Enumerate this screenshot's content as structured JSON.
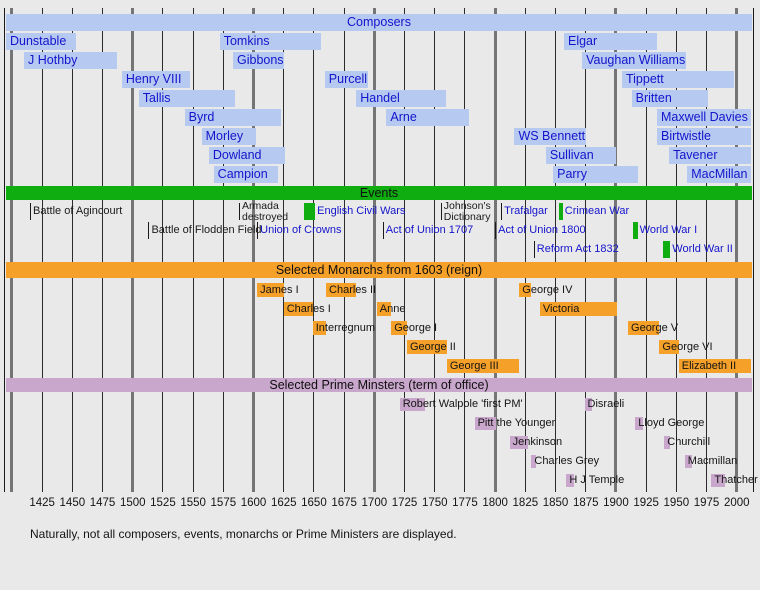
{
  "caption": "Naturally, not all composers, events, monarchs or Prime Ministers are displayed.",
  "colors": {
    "background": "#e9e9e9",
    "composer_bar": "#b5c9f1",
    "link_blue_text": "#1414cc",
    "event_green": "#10ad10",
    "monarch_orange": "#f5a028",
    "pm_purple": "#c9a6cb",
    "grid_minor": "#2b2b2b",
    "grid_major": "#757575"
  },
  "chart_data": {
    "type": "timeline",
    "x_domain": [
      1395,
      2012
    ],
    "grid": {
      "start": 1400,
      "end": 2000,
      "step": 25,
      "major_every": 100
    },
    "axis": {
      "tick_labels": [
        "1425",
        "1450",
        "1475",
        "1500",
        "1525",
        "1550",
        "1575",
        "1600",
        "1625",
        "1650",
        "1675",
        "1700",
        "1725",
        "1750",
        "1775",
        "1800",
        "1825",
        "1850",
        "1875",
        "1900",
        "1925",
        "1950",
        "1975",
        "2000"
      ]
    },
    "sections": [
      {
        "id": "composers",
        "title": "Composers",
        "items": [
          {
            "name": "Dunstable",
            "start": 1390,
            "end": 1453,
            "row": 0
          },
          {
            "name": "Tomkins",
            "start": 1572,
            "end": 1656,
            "row": 0
          },
          {
            "name": "Elgar",
            "start": 1857,
            "end": 1934,
            "row": 0
          },
          {
            "name": "J Hothby",
            "start": 1410,
            "end": 1487,
            "row": 1
          },
          {
            "name": "Gibbons",
            "start": 1583,
            "end": 1625,
            "row": 1
          },
          {
            "name": "Vaughan Williams",
            "start": 1872,
            "end": 1958,
            "row": 1
          },
          {
            "name": "Henry VIII",
            "start": 1491,
            "end": 1547,
            "row": 2
          },
          {
            "name": "Purcell",
            "start": 1659,
            "end": 1695,
            "row": 2
          },
          {
            "name": "Tippett",
            "start": 1905,
            "end": 1998,
            "row": 2
          },
          {
            "name": "Tallis",
            "start": 1505,
            "end": 1585,
            "row": 3
          },
          {
            "name": "Handel",
            "start": 1685,
            "end": 1759,
            "row": 3
          },
          {
            "name": "Britten",
            "start": 1913,
            "end": 1976,
            "row": 3
          },
          {
            "name": "Byrd",
            "start": 1543,
            "end": 1623,
            "row": 4
          },
          {
            "name": "Arne",
            "start": 1710,
            "end": 1778,
            "row": 4
          },
          {
            "name": "Maxwell Davies",
            "start": 1934,
            "end": null,
            "row": 4
          },
          {
            "name": "Morley",
            "start": 1557,
            "end": 1602,
            "row": 5
          },
          {
            "name": "WS Bennett",
            "start": 1816,
            "end": 1875,
            "row": 5
          },
          {
            "name": "Birtwistle",
            "start": 1934,
            "end": null,
            "row": 5
          },
          {
            "name": "Dowland",
            "start": 1563,
            "end": 1626,
            "row": 6
          },
          {
            "name": "Sullivan",
            "start": 1842,
            "end": 1900,
            "row": 6
          },
          {
            "name": "Tavener",
            "start": 1944,
            "end": null,
            "row": 6
          },
          {
            "name": "Campion",
            "start": 1567,
            "end": 1620,
            "row": 7
          },
          {
            "name": "Parry",
            "start": 1848,
            "end": 1918,
            "row": 7
          },
          {
            "name": "MacMillan",
            "start": 1959,
            "end": null,
            "row": 7
          }
        ]
      },
      {
        "id": "events",
        "title": "Events",
        "items": [
          {
            "name": "Battle of Agincourt",
            "year": 1415,
            "row": 0,
            "color": "black",
            "kind": "tick"
          },
          {
            "name": "Armada\ndestroyed",
            "year": 1588,
            "row": 0,
            "color": "black",
            "kind": "tick",
            "two_line": true
          },
          {
            "name": "English Civil Wars",
            "start": 1642,
            "end": 1651,
            "row": 0,
            "color": "blue",
            "kind": "block"
          },
          {
            "name": "Johnson's\nDictionary",
            "year": 1755,
            "row": 0,
            "color": "black",
            "kind": "tick",
            "two_line": true
          },
          {
            "name": "Trafalgar",
            "year": 1805,
            "row": 0,
            "color": "blue",
            "kind": "tick"
          },
          {
            "name": "Crimean War",
            "start": 1853,
            "end": 1856,
            "row": 0,
            "color": "blue",
            "kind": "block"
          },
          {
            "name": "Battle of Flodden Field",
            "year": 1513,
            "row": 1,
            "color": "black",
            "kind": "tick"
          },
          {
            "name": "Union of Crowns",
            "year": 1603,
            "row": 1,
            "color": "blue",
            "kind": "tick"
          },
          {
            "name": "Act of Union 1707",
            "year": 1707,
            "row": 1,
            "color": "blue",
            "kind": "tick"
          },
          {
            "name": "Act of Union 1800",
            "year": 1800,
            "row": 1,
            "color": "blue",
            "kind": "tick"
          },
          {
            "name": "World War I",
            "start": 1914,
            "end": 1918,
            "row": 1,
            "color": "blue",
            "kind": "block"
          },
          {
            "name": "Reform Act 1832",
            "year": 1832,
            "row": 2,
            "color": "blue",
            "kind": "tick"
          },
          {
            "name": "World War II",
            "start": 1939,
            "end": 1945,
            "row": 2,
            "color": "blue",
            "kind": "block"
          }
        ]
      },
      {
        "id": "monarchs",
        "title": "Selected Monarchs from 1603 (reign)",
        "items": [
          {
            "name": "James I",
            "start": 1603,
            "end": 1625,
            "row": 0
          },
          {
            "name": "Charles II",
            "start": 1660,
            "end": 1685,
            "row": 0
          },
          {
            "name": "George IV",
            "start": 1820,
            "end": 1830,
            "row": 0
          },
          {
            "name": "Charles I",
            "start": 1625,
            "end": 1649,
            "row": 1
          },
          {
            "name": "Anne",
            "start": 1702,
            "end": 1714,
            "row": 1
          },
          {
            "name": "Victoria",
            "start": 1837,
            "end": 1901,
            "row": 1
          },
          {
            "name": "Interregnum",
            "start": 1649,
            "end": 1660,
            "row": 2
          },
          {
            "name": "George I",
            "start": 1714,
            "end": 1727,
            "row": 2
          },
          {
            "name": "George V",
            "start": 1910,
            "end": 1936,
            "row": 2
          },
          {
            "name": "George II",
            "start": 1727,
            "end": 1760,
            "row": 3
          },
          {
            "name": "George VI",
            "start": 1936,
            "end": 1952,
            "row": 3
          },
          {
            "name": "George III",
            "start": 1760,
            "end": 1820,
            "row": 4
          },
          {
            "name": "Elizabeth II",
            "start": 1952,
            "end": null,
            "row": 4
          }
        ]
      },
      {
        "id": "pms",
        "title": "Selected Prime Minsters (term of office)",
        "items": [
          {
            "name": "Robert Walpole 'first PM'",
            "start": 1721,
            "end": 1742,
            "row": 0
          },
          {
            "name": "Disraeli",
            "start": 1874,
            "end": 1880,
            "row": 0
          },
          {
            "name": "Pitt the Younger",
            "start": 1783,
            "end": 1801,
            "row": 1
          },
          {
            "name": "Lloyd George",
            "start": 1916,
            "end": 1922,
            "row": 1
          },
          {
            "name": "Jenkinson",
            "start": 1812,
            "end": 1827,
            "row": 2
          },
          {
            "name": "Churchill",
            "start": 1940,
            "end": 1945,
            "row": 2
          },
          {
            "name": "Charles Grey",
            "start": 1830,
            "end": 1834,
            "row": 3
          },
          {
            "name": "Macmillan",
            "start": 1957,
            "end": 1963,
            "row": 3
          },
          {
            "name": "H J Temple",
            "start": 1859,
            "end": 1865,
            "row": 4
          },
          {
            "name": "Thatcher",
            "start": 1979,
            "end": 1990,
            "row": 4
          }
        ]
      }
    ]
  }
}
